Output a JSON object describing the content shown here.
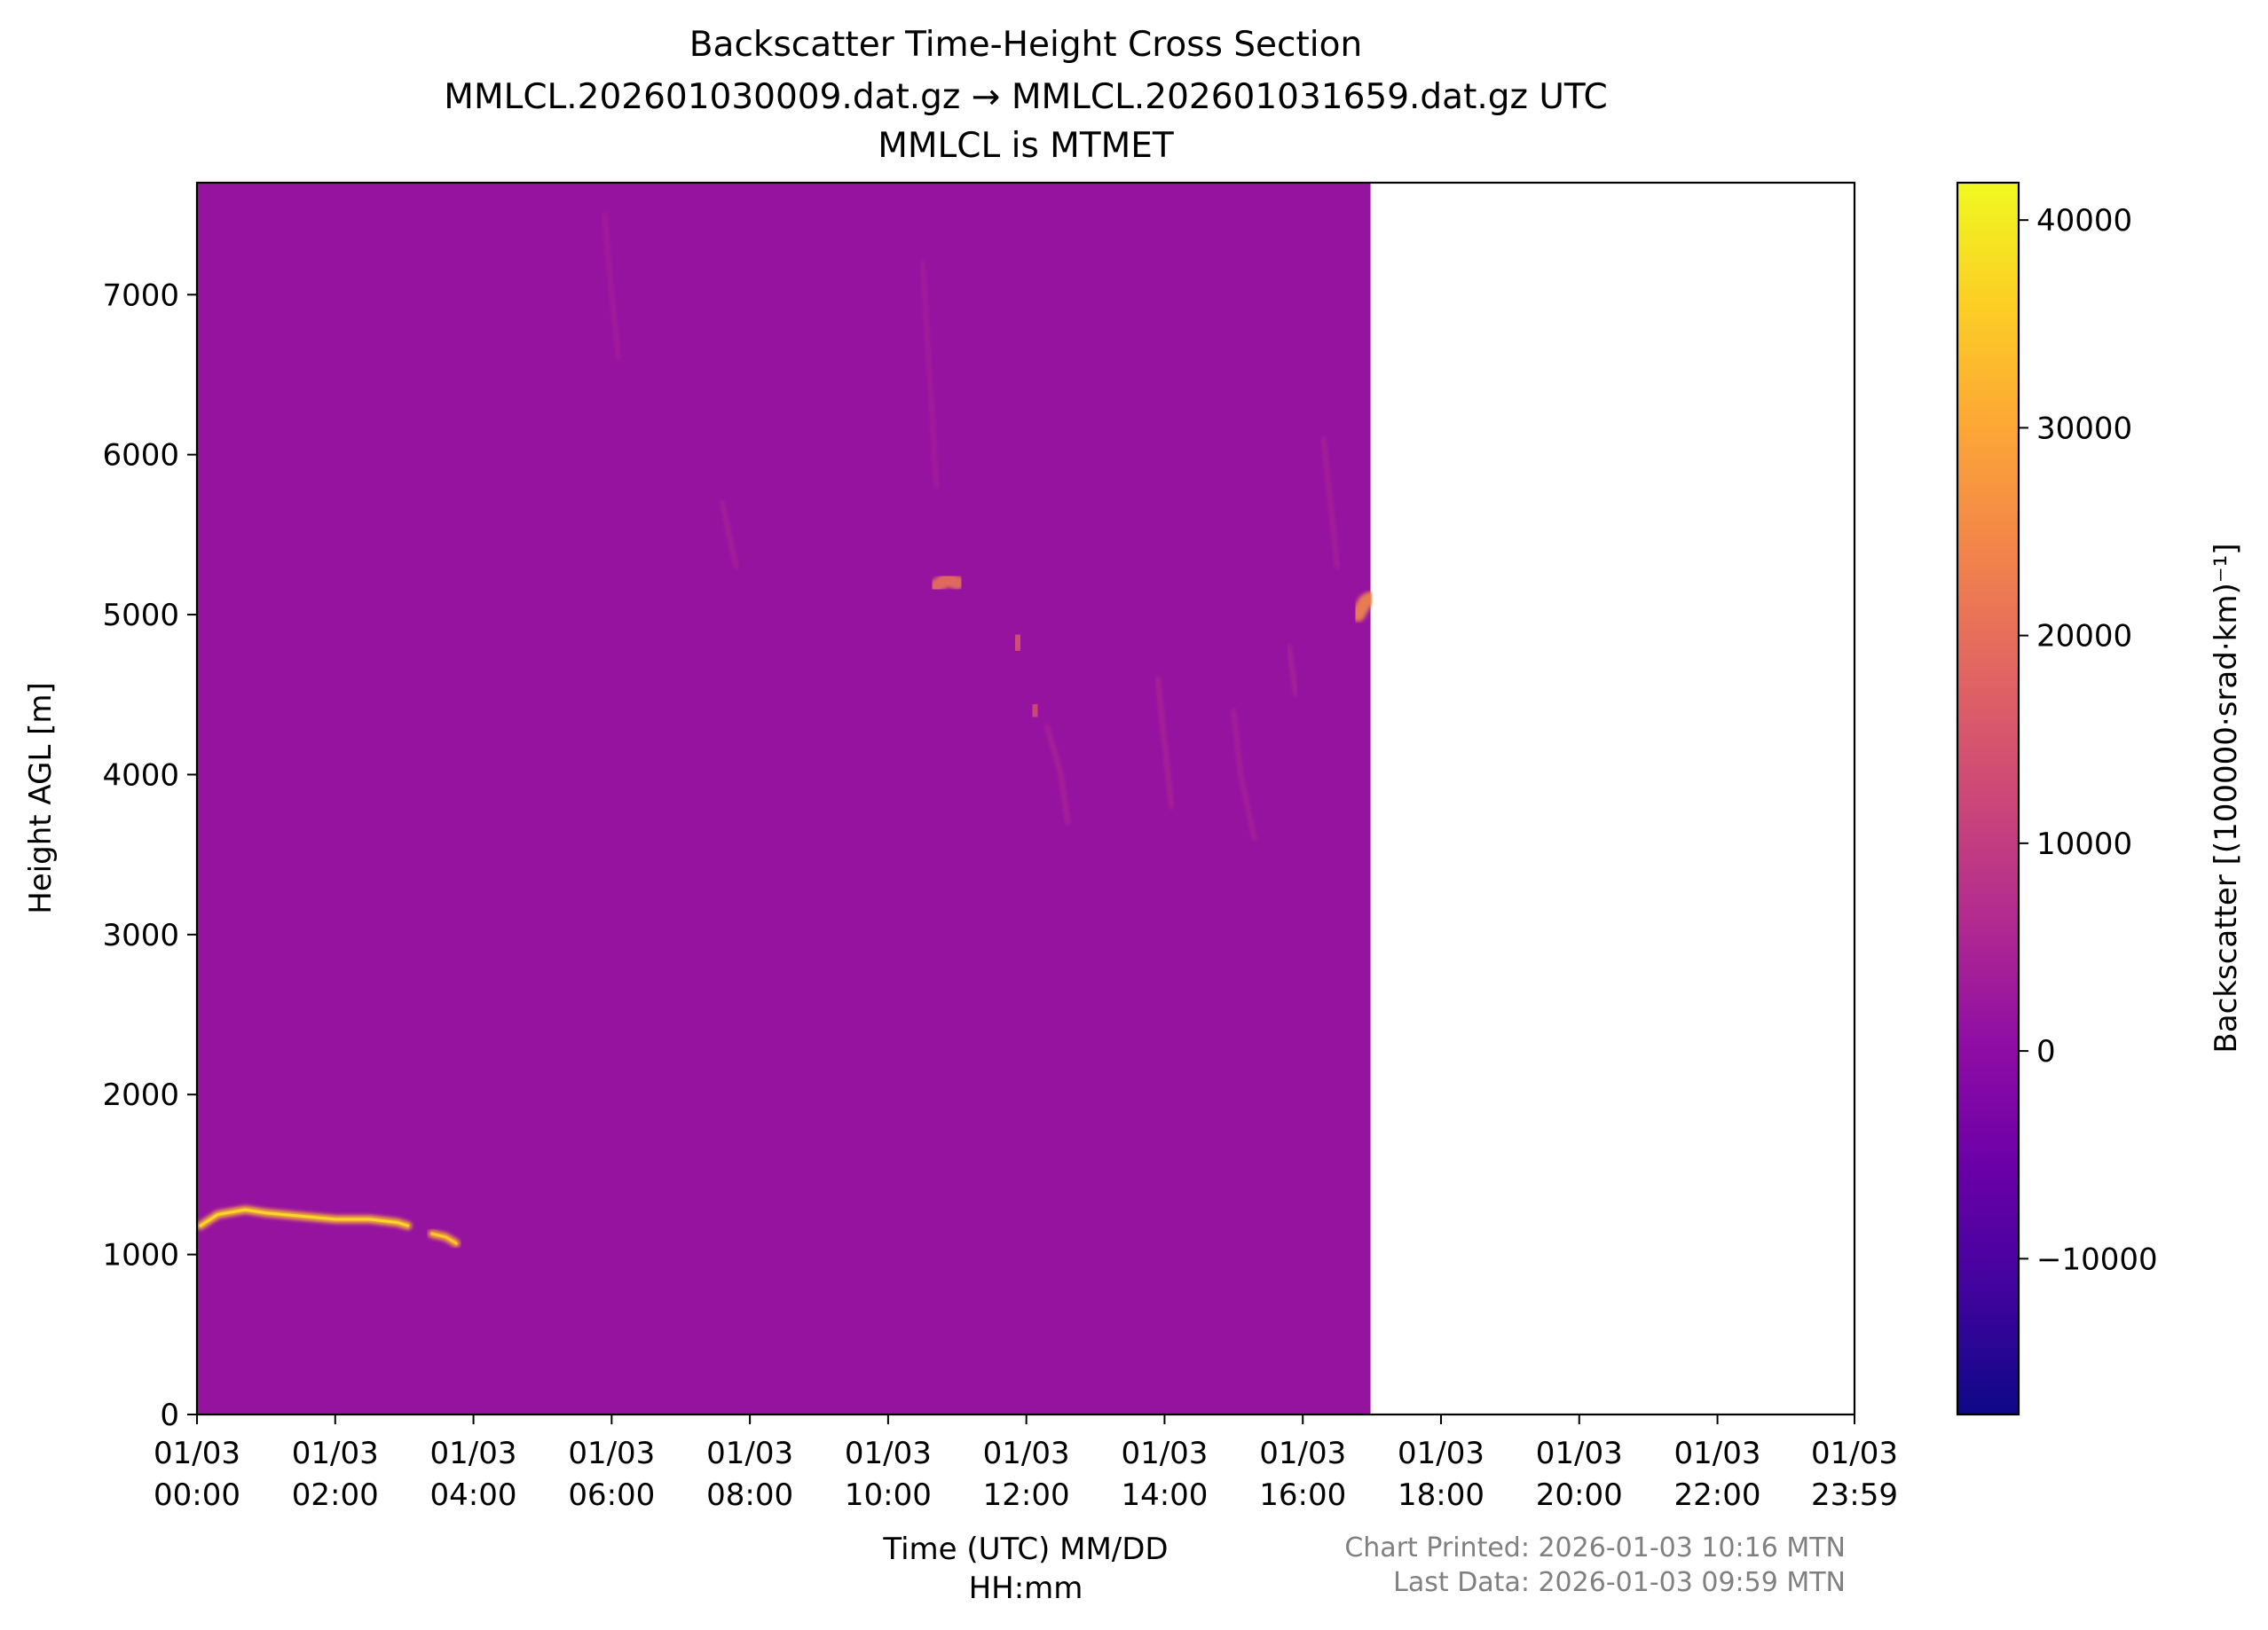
{
  "chart_data": {
    "type": "heatmap",
    "title": [
      "Backscatter Time-Height Cross Section",
      "MMLCL.202601030009.dat.gz → MMLCL.202601031659.dat.gz UTC",
      "MMLCL is MTMET"
    ],
    "xlabel": [
      "Time (UTC) MM/DD",
      "HH:mm"
    ],
    "ylabel": "Height AGL [m]",
    "colorbar_label": "Backscatter [(100000·srad·km)⁻¹]",
    "colormap": "plasma",
    "x_start_hours": 0,
    "x_end_hours": 23.983,
    "x_tick_hours": [
      0,
      2,
      4,
      6,
      8,
      10,
      12,
      14,
      16,
      18,
      20,
      22,
      23.983
    ],
    "x_tick_labels": [
      [
        "01/03",
        "00:00"
      ],
      [
        "01/03",
        "02:00"
      ],
      [
        "01/03",
        "04:00"
      ],
      [
        "01/03",
        "06:00"
      ],
      [
        "01/03",
        "08:00"
      ],
      [
        "01/03",
        "10:00"
      ],
      [
        "01/03",
        "12:00"
      ],
      [
        "01/03",
        "14:00"
      ],
      [
        "01/03",
        "16:00"
      ],
      [
        "01/03",
        "18:00"
      ],
      [
        "01/03",
        "20:00"
      ],
      [
        "01/03",
        "22:00"
      ],
      [
        "01/03",
        "23:59"
      ]
    ],
    "ylim": [
      0,
      7700
    ],
    "y_ticks": [
      0,
      1000,
      2000,
      3000,
      4000,
      5000,
      6000,
      7000
    ],
    "colorbar_range": [
      -17500,
      41800
    ],
    "colorbar_ticks": [
      -10000,
      0,
      10000,
      20000,
      30000,
      40000
    ],
    "colorbar_tick_labels": [
      "−10000",
      "0",
      "10000",
      "20000",
      "30000",
      "40000"
    ],
    "data_extent_hours": [
      0.0,
      16.98
    ],
    "background_value": 1500,
    "features": [
      {
        "kind": "cloud_layer",
        "points": [
          [
            0.05,
            1180
          ],
          [
            0.3,
            1250
          ],
          [
            0.7,
            1280
          ],
          [
            1.0,
            1260
          ],
          [
            1.5,
            1240
          ],
          [
            2.0,
            1220
          ],
          [
            2.5,
            1220
          ],
          [
            2.9,
            1200
          ],
          [
            3.05,
            1180
          ]
        ],
        "value": 32000
      },
      {
        "kind": "cloud_layer",
        "points": [
          [
            3.4,
            1130
          ],
          [
            3.6,
            1110
          ],
          [
            3.75,
            1070
          ]
        ],
        "value": 30000
      },
      {
        "kind": "cloud_patch",
        "points": [
          [
            10.7,
            5180
          ],
          [
            10.85,
            5220
          ],
          [
            11.0,
            5200
          ]
        ],
        "value": 22000
      },
      {
        "kind": "cloud_patch",
        "points": [
          [
            16.8,
            5000
          ],
          [
            16.9,
            5080
          ],
          [
            16.97,
            5100
          ]
        ],
        "value": 26000
      },
      {
        "kind": "cloud_patch",
        "points": [
          [
            11.85,
            4800
          ],
          [
            11.9,
            4850
          ]
        ],
        "value": 16000
      },
      {
        "kind": "cloud_patch",
        "points": [
          [
            12.1,
            4380
          ],
          [
            12.15,
            4420
          ]
        ],
        "value": 14000
      },
      {
        "kind": "virga",
        "points": [
          [
            7.6,
            5700
          ],
          [
            7.7,
            5500
          ],
          [
            7.8,
            5300
          ]
        ],
        "value": 8000
      },
      {
        "kind": "virga",
        "points": [
          [
            12.3,
            4300
          ],
          [
            12.5,
            4000
          ],
          [
            12.6,
            3700
          ]
        ],
        "value": 9000
      },
      {
        "kind": "virga",
        "points": [
          [
            13.9,
            4600
          ],
          [
            14.0,
            4200
          ],
          [
            14.1,
            3800
          ]
        ],
        "value": 9000
      },
      {
        "kind": "virga",
        "points": [
          [
            15.0,
            4400
          ],
          [
            15.1,
            4000
          ],
          [
            15.3,
            3600
          ]
        ],
        "value": 8000
      },
      {
        "kind": "virga",
        "points": [
          [
            15.8,
            4800
          ],
          [
            15.9,
            4500
          ]
        ],
        "value": 9000
      },
      {
        "kind": "virga",
        "points": [
          [
            16.3,
            6100
          ],
          [
            16.4,
            5700
          ],
          [
            16.5,
            5300
          ]
        ],
        "value": 8000
      },
      {
        "kind": "virga",
        "points": [
          [
            5.9,
            7500
          ],
          [
            6.0,
            7000
          ],
          [
            6.1,
            6600
          ]
        ],
        "value": 6500
      },
      {
        "kind": "virga",
        "points": [
          [
            10.5,
            7200
          ],
          [
            10.6,
            6500
          ],
          [
            10.7,
            5800
          ]
        ],
        "value": 6500
      }
    ],
    "grid": false,
    "legend": "colorbar-right"
  },
  "footer": {
    "chart_printed": "Chart Printed: 2026-01-03 10:16 MTN",
    "last_data": "Last Data: 2026-01-03 09:59 MTN"
  }
}
